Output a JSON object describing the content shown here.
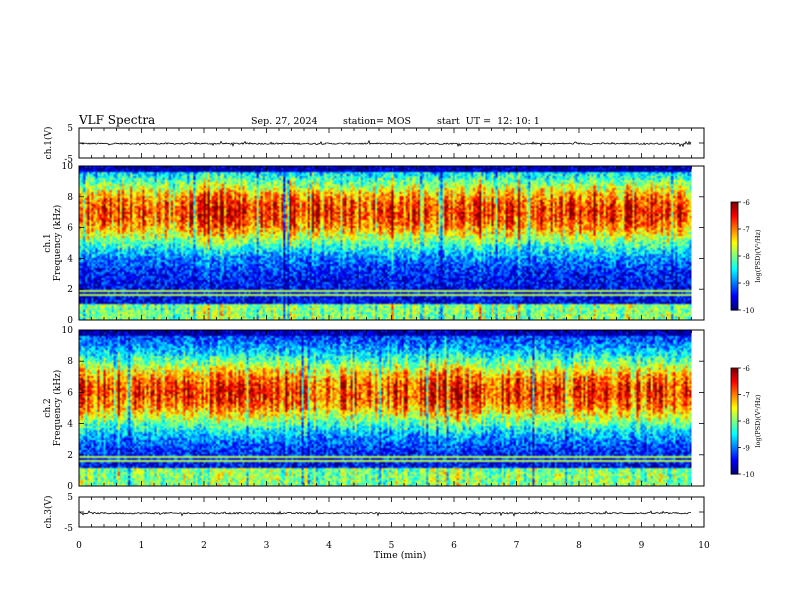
{
  "chart_data": [
    {
      "type": "line",
      "header": {
        "title": "VLF Spectra",
        "date": "Sep. 27, 2024",
        "station": "station= MOS",
        "start": "start  UT =  12: 10: 1"
      },
      "ylabel": "ch.1(V)",
      "ylim": [
        -5,
        5
      ],
      "yticks": [
        "5",
        "-5"
      ],
      "baseline": -0.2
    },
    {
      "type": "heatmap",
      "ylabel": "ch.1\nFrequency (kHz)",
      "ylim": [
        0,
        10
      ],
      "yticks": [
        "0",
        "2",
        "4",
        "6",
        "8",
        "10"
      ],
      "colorbar": {
        "label": "log(PSD)(V²/Hz)",
        "ticks": [
          "-6",
          "-7",
          "-8",
          "-9",
          "-10"
        ],
        "range": [
          -10,
          -6
        ]
      },
      "band_peak_khz": 7.0
    },
    {
      "type": "heatmap",
      "ylabel": "ch.2\nFrequency (kHz)",
      "ylim": [
        0,
        10
      ],
      "yticks": [
        "0",
        "2",
        "4",
        "6",
        "8",
        "10"
      ],
      "colorbar": {
        "label": "log(PSD)(V²/Hz)",
        "ticks": [
          "-6",
          "-7",
          "-8",
          "-9",
          "-10"
        ],
        "range": [
          -10,
          -6
        ]
      },
      "band_peak_khz": 6.0
    },
    {
      "type": "line",
      "ylabel": "ch.3(V)",
      "ylim": [
        -5,
        5
      ],
      "yticks": [
        "5",
        "-5"
      ],
      "baseline": -0.4
    }
  ],
  "x_axis": {
    "label": "Time (min)",
    "range": [
      0,
      10
    ],
    "ticks": [
      "0",
      "1",
      "2",
      "3",
      "4",
      "5",
      "6",
      "7",
      "8",
      "9",
      "10"
    ],
    "data_end": 9.8
  }
}
